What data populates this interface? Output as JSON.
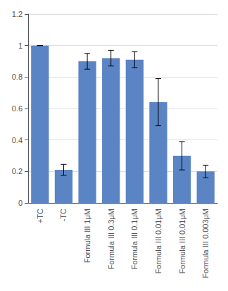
{
  "chart_data": {
    "type": "bar",
    "categories": [
      "+TC",
      "-TC",
      "Formula III 1μM",
      "Formula III 0.3μM",
      "Formula III 0.1μM",
      "Formula III 0.01μM",
      "Formula III 0.01μM",
      "Formula III 0.003μM"
    ],
    "values": [
      1.0,
      0.21,
      0.9,
      0.92,
      0.91,
      0.64,
      0.3,
      0.2
    ],
    "errors": [
      0.0,
      0.035,
      0.05,
      0.05,
      0.05,
      0.15,
      0.09,
      0.04
    ],
    "color": "#5B84C4",
    "ylim": [
      0,
      1.2
    ],
    "yticks": [
      0,
      0.2,
      0.4,
      0.6,
      0.8,
      1.0,
      1.2
    ],
    "grid": true
  }
}
